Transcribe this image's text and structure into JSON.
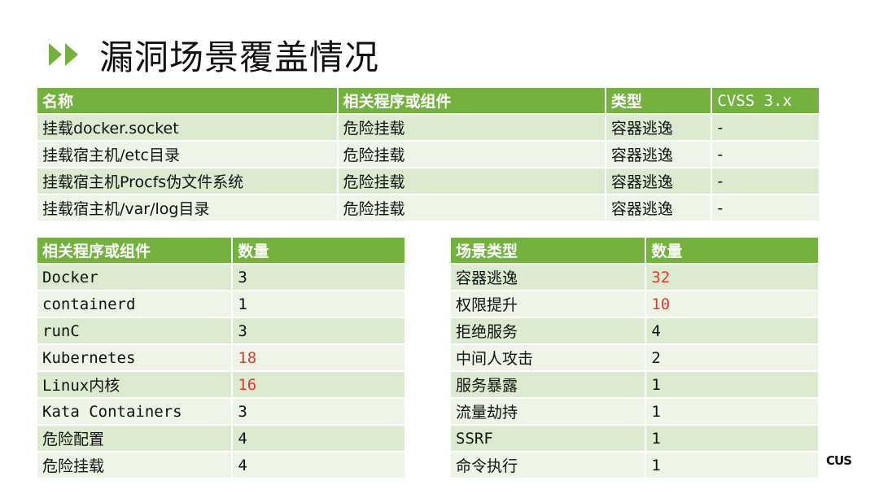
{
  "title": "漏洞场景覆盖情况",
  "logo_text": "CUS",
  "colors": {
    "header_green": "#73b23f",
    "row_dark": "#dcebd0",
    "row_light": "#eef5e7",
    "highlight_red": "#e23a2e"
  },
  "main_table": {
    "headers": [
      "名称",
      "相关程序或组件",
      "类型",
      "CVSS 3.x"
    ],
    "rows": [
      [
        "挂载docker.socket",
        "危险挂载",
        "容器逃逸",
        "-"
      ],
      [
        "挂载宿主机/etc目录",
        "危险挂载",
        "容器逃逸",
        "-"
      ],
      [
        "挂载宿主机Procfs伪文件系统",
        "危险挂载",
        "容器逃逸",
        "-"
      ],
      [
        "挂载宿主机/var/log目录",
        "危险挂载",
        "容器逃逸",
        "-"
      ]
    ]
  },
  "component_table": {
    "headers": [
      "相关程序或组件",
      "数量"
    ],
    "rows": [
      [
        "Docker",
        "3"
      ],
      [
        "containerd",
        "1"
      ],
      [
        "runC",
        "3"
      ],
      [
        "Kubernetes",
        "18"
      ],
      [
        "Linux内核",
        "16"
      ],
      [
        "Kata Containers",
        "3"
      ],
      [
        "危险配置",
        "4"
      ],
      [
        "危险挂载",
        "4"
      ]
    ],
    "highlighted_rows": [
      3,
      4
    ]
  },
  "scenario_table": {
    "headers": [
      "场景类型",
      "数量"
    ],
    "rows": [
      [
        "容器逃逸",
        "32"
      ],
      [
        "权限提升",
        "10"
      ],
      [
        "拒绝服务",
        "4"
      ],
      [
        "中间人攻击",
        "2"
      ],
      [
        "服务暴露",
        "1"
      ],
      [
        "流量劫持",
        "1"
      ],
      [
        "SSRF",
        "1"
      ],
      [
        "命令执行",
        "1"
      ]
    ],
    "highlighted_rows": [
      0,
      1
    ]
  }
}
